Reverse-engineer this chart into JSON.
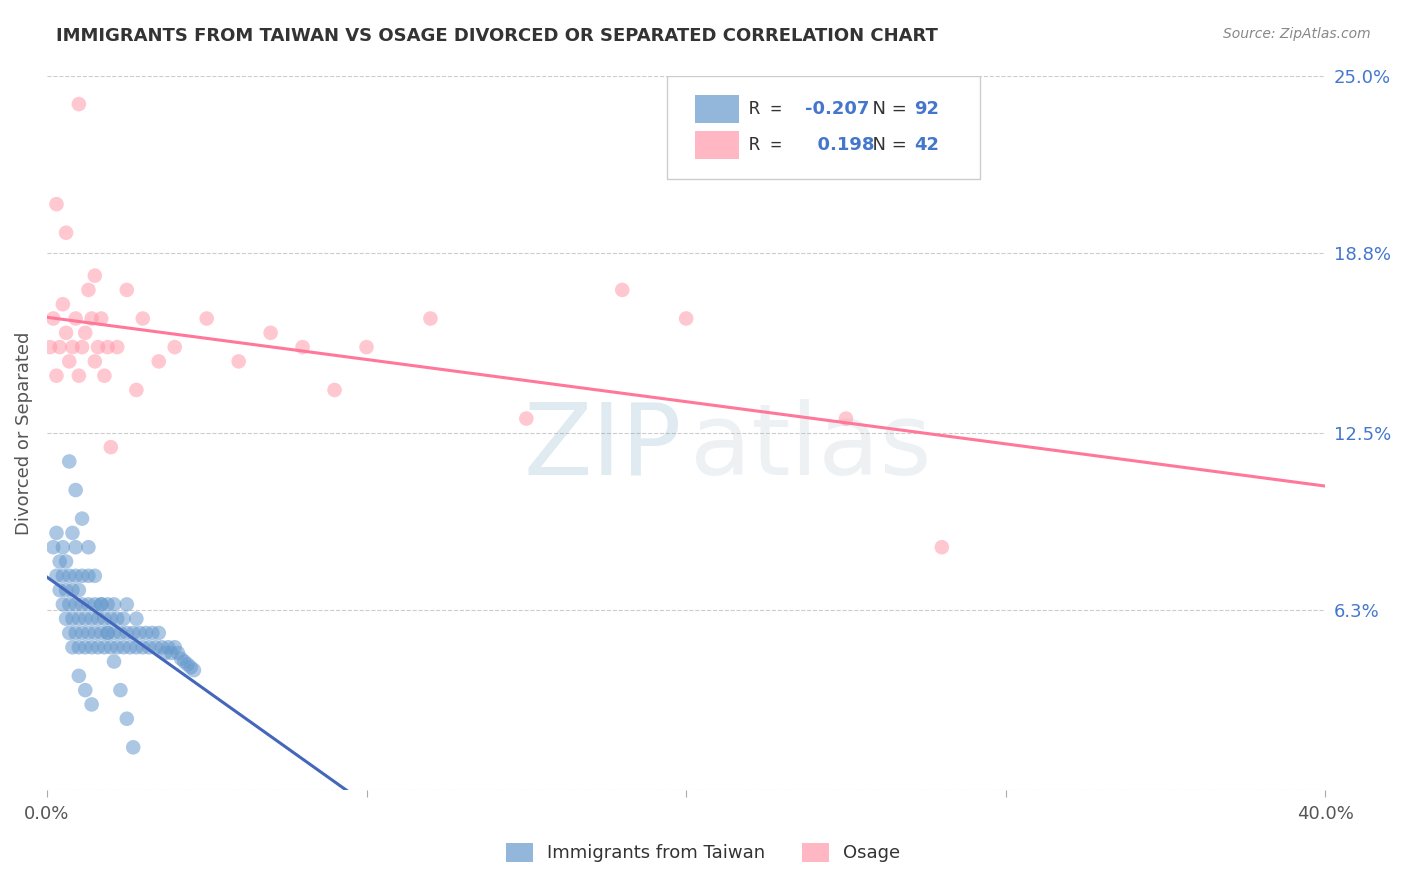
{
  "title": "IMMIGRANTS FROM TAIWAN VS OSAGE DIVORCED OR SEPARATED CORRELATION CHART",
  "source_text": "Source: ZipAtlas.com",
  "ylabel": "Divorced or Separated",
  "legend_label1": "Immigrants from Taiwan",
  "legend_label2": "Osage",
  "R1": -0.207,
  "N1": 92,
  "R2": 0.198,
  "N2": 42,
  "xlim": [
    0.0,
    0.4
  ],
  "ylim": [
    0.0,
    0.25
  ],
  "yticks": [
    0.0,
    0.063,
    0.125,
    0.188,
    0.25
  ],
  "ytick_labels": [
    "",
    "6.3%",
    "12.5%",
    "18.8%",
    "25.0%"
  ],
  "xticks": [
    0.0,
    0.1,
    0.2,
    0.3,
    0.4
  ],
  "xtick_labels": [
    "0.0%",
    "",
    "",
    "",
    "40.0%"
  ],
  "color_blue": "#6699CC",
  "color_pink": "#FF99AA",
  "color_blue_line": "#4466BB",
  "color_pink_line": "#FF7799",
  "color_dashed": "#AACCEE",
  "background_color": "#FFFFFF",
  "blue_scatter_x": [
    0.002,
    0.003,
    0.003,
    0.004,
    0.004,
    0.005,
    0.005,
    0.005,
    0.006,
    0.006,
    0.006,
    0.007,
    0.007,
    0.007,
    0.008,
    0.008,
    0.008,
    0.008,
    0.009,
    0.009,
    0.009,
    0.009,
    0.01,
    0.01,
    0.01,
    0.011,
    0.011,
    0.011,
    0.012,
    0.012,
    0.013,
    0.013,
    0.013,
    0.014,
    0.014,
    0.015,
    0.015,
    0.016,
    0.016,
    0.017,
    0.017,
    0.018,
    0.018,
    0.019,
    0.019,
    0.02,
    0.02,
    0.021,
    0.021,
    0.022,
    0.022,
    0.023,
    0.024,
    0.024,
    0.025,
    0.025,
    0.026,
    0.027,
    0.028,
    0.028,
    0.029,
    0.03,
    0.031,
    0.032,
    0.033,
    0.034,
    0.035,
    0.036,
    0.037,
    0.038,
    0.039,
    0.04,
    0.041,
    0.042,
    0.043,
    0.044,
    0.045,
    0.046,
    0.007,
    0.009,
    0.011,
    0.013,
    0.015,
    0.017,
    0.019,
    0.021,
    0.023,
    0.025,
    0.027,
    0.01,
    0.012,
    0.014
  ],
  "blue_scatter_y": [
    0.085,
    0.075,
    0.09,
    0.07,
    0.08,
    0.065,
    0.075,
    0.085,
    0.06,
    0.07,
    0.08,
    0.055,
    0.065,
    0.075,
    0.05,
    0.06,
    0.07,
    0.09,
    0.055,
    0.065,
    0.075,
    0.085,
    0.05,
    0.06,
    0.07,
    0.055,
    0.065,
    0.075,
    0.05,
    0.06,
    0.055,
    0.065,
    0.075,
    0.05,
    0.06,
    0.055,
    0.065,
    0.05,
    0.06,
    0.055,
    0.065,
    0.05,
    0.06,
    0.055,
    0.065,
    0.05,
    0.06,
    0.055,
    0.065,
    0.05,
    0.06,
    0.055,
    0.05,
    0.06,
    0.055,
    0.065,
    0.05,
    0.055,
    0.05,
    0.06,
    0.055,
    0.05,
    0.055,
    0.05,
    0.055,
    0.05,
    0.055,
    0.05,
    0.048,
    0.05,
    0.048,
    0.05,
    0.048,
    0.046,
    0.045,
    0.044,
    0.043,
    0.042,
    0.115,
    0.105,
    0.095,
    0.085,
    0.075,
    0.065,
    0.055,
    0.045,
    0.035,
    0.025,
    0.015,
    0.04,
    0.035,
    0.03
  ],
  "pink_scatter_x": [
    0.001,
    0.002,
    0.003,
    0.004,
    0.005,
    0.006,
    0.007,
    0.008,
    0.009,
    0.01,
    0.011,
    0.012,
    0.013,
    0.014,
    0.015,
    0.016,
    0.017,
    0.018,
    0.019,
    0.02,
    0.022,
    0.025,
    0.028,
    0.03,
    0.035,
    0.04,
    0.05,
    0.06,
    0.07,
    0.08,
    0.09,
    0.1,
    0.12,
    0.15,
    0.18,
    0.2,
    0.25,
    0.28,
    0.003,
    0.006,
    0.01,
    0.015
  ],
  "pink_scatter_y": [
    0.155,
    0.165,
    0.145,
    0.155,
    0.17,
    0.16,
    0.15,
    0.155,
    0.165,
    0.145,
    0.155,
    0.16,
    0.175,
    0.165,
    0.18,
    0.155,
    0.165,
    0.145,
    0.155,
    0.12,
    0.155,
    0.175,
    0.14,
    0.165,
    0.15,
    0.155,
    0.165,
    0.15,
    0.16,
    0.155,
    0.14,
    0.155,
    0.165,
    0.13,
    0.175,
    0.165,
    0.13,
    0.085,
    0.205,
    0.195,
    0.24,
    0.15
  ]
}
